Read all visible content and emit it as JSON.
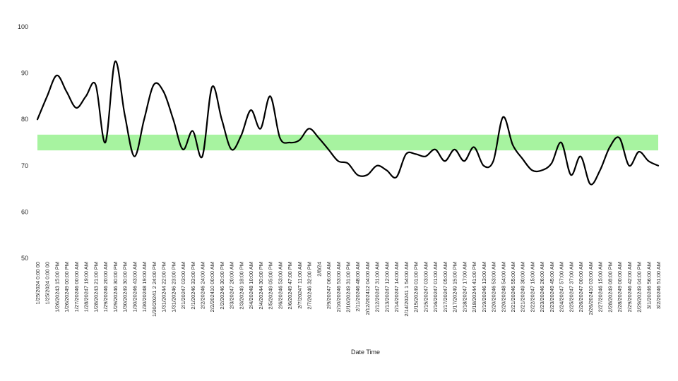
{
  "chart_data": {
    "type": "line",
    "title": "",
    "xlabel": "Date Time",
    "ylabel": "",
    "ylim": [
      50,
      100
    ],
    "yticks": [
      50,
      60,
      70,
      80,
      90,
      100
    ],
    "grid": false,
    "legend": "none",
    "colors": {
      "line": "#000000",
      "band": "#a7f3a0"
    },
    "band": {
      "from": 73.3,
      "to": 76.7
    },
    "categories": [
      "1/25/2024 0:00 00",
      "1/25/2024 0:00 00",
      "1/26/20243 15:00 PM",
      "1/26/20249 00:00 PM",
      "1/27/20246 00:00 AM",
      "1/28/20247 19:00 AM",
      "1/28/20243 21:00 PM",
      "1/29/20246 20:00 AM",
      "1/29/20246 30:00 PM",
      "1/30/20249 30:00 PM",
      "1/30/20246 43:00 AM",
      "1/30/20248 19:00 AM",
      "1/30/20241 2 24:00 PM",
      "1/31/20244 22:00 PM",
      "1/31/20246 23:00 PM",
      "2/1/20247 03:00 AM",
      "2/1/20246 33:00 PM",
      "2/2/20246 24:00 AM",
      "2/2/202410 00:00 AM",
      "2/2/20246 30:00 PM",
      "2/3/20247 20:00 AM",
      "2/3/20249 18:00 PM",
      "2/4/20248 10:00 AM",
      "2/4/20244 30:00 PM",
      "2/5/20249 05:00 PM",
      "2/6/20246 53:00 AM",
      "2/6/20249 47:00 PM",
      "2/7/20247 11:00 AM",
      "2/7/20246 32:00 PM",
      "2/8/24",
      "2/9/20247 06:00 AM",
      "2/10/20246 53:00 AM",
      "2/10/20249 31:00 PM",
      "2/11/20246 48:00 AM",
      "2/12/202412 04:00 AM",
      "2/12/20247 31:00 AM",
      "2/13/20247 12:00 AM",
      "2/14/20247 14:00 AM",
      "2/14/20241 1 54:00 AM",
      "2/15/20249 01:00 PM",
      "2/15/20247 03:00 AM",
      "2/16/20247 01:00 AM",
      "2/17/20247 05:00 AM",
      "2/17/20249 15:00 PM",
      "2/18/20247 17:00 AM",
      "2/18/20244 41:00 PM",
      "2/19/20246 13:00 AM",
      "2/20/20246 53:00 AM",
      "2/20/20248 54:00 AM",
      "2/21/20246 55:00 AM",
      "2/21/20249 30:00 AM",
      "2/22/20247 15:00 AM",
      "2/23/20246 26:00 AM",
      "2/23/20249 45:00 AM",
      "2/24/20247 57:00 AM",
      "2/25/20247 37:00 AM",
      "2/26/20247 00:00 AM",
      "2/26/202410 03:00 AM",
      "2/27/20246 15:00 AM",
      "2/28/20249 08:00 PM",
      "2/28/20249 00:00 AM",
      "2/29/20246 42:00 AM",
      "2/29/20249 04:00 PM",
      "3/1/20246 56:00 AM",
      "3/2/20246 51:00 AM"
    ],
    "series": [
      {
        "values": [
          80,
          85,
          89.5,
          86,
          82.5,
          85,
          87.5,
          75,
          92.5,
          81,
          72,
          80,
          87.5,
          86,
          80,
          73.5,
          77.5,
          72,
          87,
          80,
          73.5,
          76.5,
          82,
          78,
          85,
          76,
          75,
          75.5,
          78,
          76,
          73.5,
          71,
          70.5,
          68,
          68,
          70,
          69,
          67.5,
          72.5,
          72.5,
          72,
          73.5,
          71,
          73.5,
          71,
          74,
          70,
          71,
          80.5,
          74.5,
          71.5,
          69,
          69,
          70.5,
          75,
          68,
          72,
          66,
          69,
          74,
          76,
          70,
          73,
          71,
          70
        ]
      }
    ]
  }
}
